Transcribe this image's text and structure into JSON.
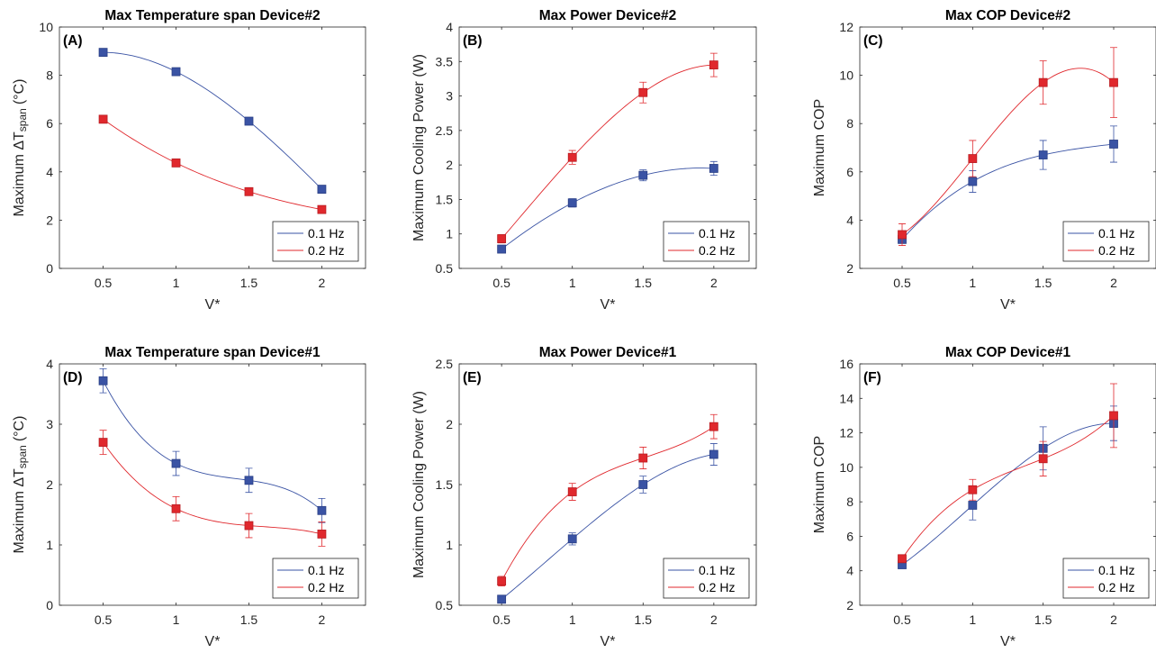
{
  "chart_data": [
    {
      "type": "scatter",
      "panel_label": "(A)",
      "title": "Max Temperature span Device#2",
      "xlabel": "V*",
      "ylabel": "Maximum ΔT",
      "ylabel_sub": "span",
      "ylabel_unit": "(°C)",
      "xlim": [
        0.2,
        2.3
      ],
      "ylim": [
        0,
        10
      ],
      "xticks": [
        "0.5",
        "1",
        "1.5",
        "2"
      ],
      "yticks": [
        "0",
        "2",
        "4",
        "6",
        "8",
        "10"
      ],
      "x": [
        0.5,
        1,
        1.5,
        2
      ],
      "legend_position": "bottom-right",
      "series": [
        {
          "name": "0.1 Hz",
          "color": "#3a53a4",
          "values": [
            8.95,
            8.15,
            6.1,
            3.28
          ],
          "errors": [
            0.15,
            0.15,
            0.15,
            0.15
          ]
        },
        {
          "name": "0.2 Hz",
          "color": "#e0282d",
          "values": [
            6.18,
            4.37,
            3.18,
            2.44
          ],
          "errors": [
            0.12,
            0.12,
            0.12,
            0.12
          ]
        }
      ]
    },
    {
      "type": "scatter",
      "panel_label": "(B)",
      "title": "Max Power Device#2",
      "xlabel": "V*",
      "ylabel": "Maximum Cooling Power (W)",
      "xlim": [
        0.2,
        2.3
      ],
      "ylim": [
        0.5,
        4
      ],
      "xticks": [
        "0.5",
        "1",
        "1.5",
        "2"
      ],
      "yticks": [
        "0.5",
        "1",
        "1.5",
        "2",
        "2.5",
        "3",
        "3.5",
        "4"
      ],
      "x": [
        0.5,
        1,
        1.5,
        2
      ],
      "legend_position": "bottom-right",
      "series": [
        {
          "name": "0.1 Hz",
          "color": "#3a53a4",
          "values": [
            0.78,
            1.45,
            1.85,
            1.95
          ],
          "errors": [
            0.05,
            0.06,
            0.08,
            0.1
          ]
        },
        {
          "name": "0.2 Hz",
          "color": "#e0282d",
          "values": [
            0.93,
            2.11,
            3.05,
            3.45
          ],
          "errors": [
            0.06,
            0.1,
            0.15,
            0.17
          ]
        }
      ]
    },
    {
      "type": "scatter",
      "panel_label": "(C)",
      "title": "Max COP Device#2",
      "xlabel": "V*",
      "ylabel": "Maximum COP",
      "xlim": [
        0.2,
        2.3
      ],
      "ylim": [
        2,
        12
      ],
      "xticks": [
        "0.5",
        "1",
        "1.5",
        "2"
      ],
      "yticks": [
        "2",
        "4",
        "6",
        "8",
        "10",
        "12"
      ],
      "x": [
        0.5,
        1,
        1.5,
        2
      ],
      "legend_position": "bottom-right",
      "series": [
        {
          "name": "0.1 Hz",
          "color": "#3a53a4",
          "values": [
            3.2,
            5.6,
            6.7,
            7.15
          ],
          "errors": [
            0.15,
            0.45,
            0.6,
            0.75
          ]
        },
        {
          "name": "0.2 Hz",
          "color": "#e0282d",
          "values": [
            3.4,
            6.55,
            9.7,
            9.7
          ],
          "errors": [
            0.45,
            0.75,
            0.9,
            1.45
          ]
        }
      ]
    },
    {
      "type": "scatter",
      "panel_label": "(D)",
      "title": "Max Temperature span Device#1",
      "xlabel": "V*",
      "ylabel": "Maximum ΔT",
      "ylabel_sub": "span",
      "ylabel_unit": "(°C)",
      "xlim": [
        0.2,
        2.3
      ],
      "ylim": [
        0,
        4
      ],
      "xticks": [
        "0.5",
        "1",
        "1.5",
        "2"
      ],
      "yticks": [
        "0",
        "1",
        "2",
        "3",
        "4"
      ],
      "x": [
        0.5,
        1,
        1.5,
        2
      ],
      "legend_position": "bottom-right",
      "series": [
        {
          "name": "0.1 Hz",
          "color": "#3a53a4",
          "values": [
            3.72,
            2.35,
            2.07,
            1.57
          ],
          "errors": [
            0.2,
            0.2,
            0.2,
            0.2
          ]
        },
        {
          "name": "0.2 Hz",
          "color": "#e0282d",
          "values": [
            2.7,
            1.6,
            1.32,
            1.18
          ],
          "errors": [
            0.2,
            0.2,
            0.2,
            0.2
          ]
        }
      ]
    },
    {
      "type": "scatter",
      "panel_label": "(E)",
      "title": "Max Power Device#1",
      "xlabel": "V*",
      "ylabel": "Maximum Cooling Power (W)",
      "xlim": [
        0.2,
        2.3
      ],
      "ylim": [
        0.5,
        2.5
      ],
      "xticks": [
        "0.5",
        "1",
        "1.5",
        "2"
      ],
      "yticks": [
        "0.5",
        "1",
        "1.5",
        "2",
        "2.5"
      ],
      "x": [
        0.5,
        1,
        1.5,
        2
      ],
      "legend_position": "bottom-right",
      "series": [
        {
          "name": "0.1 Hz",
          "color": "#3a53a4",
          "values": [
            0.55,
            1.05,
            1.5,
            1.75
          ],
          "errors": [
            0.03,
            0.05,
            0.07,
            0.09
          ]
        },
        {
          "name": "0.2 Hz",
          "color": "#e0282d",
          "values": [
            0.7,
            1.44,
            1.72,
            1.98
          ],
          "errors": [
            0.04,
            0.07,
            0.09,
            0.1
          ]
        }
      ]
    },
    {
      "type": "scatter",
      "panel_label": "(F)",
      "title": "Max COP Device#1",
      "xlabel": "V*",
      "ylabel": "Maximum COP",
      "xlim": [
        0.2,
        2.3
      ],
      "ylim": [
        2,
        16
      ],
      "xticks": [
        "0.5",
        "1",
        "1.5",
        "2"
      ],
      "yticks": [
        "2",
        "4",
        "6",
        "8",
        "10",
        "12",
        "14",
        "16"
      ],
      "x": [
        0.5,
        1,
        1.5,
        2
      ],
      "legend_position": "bottom-right",
      "series": [
        {
          "name": "0.1 Hz",
          "color": "#3a53a4",
          "values": [
            4.35,
            7.8,
            11.1,
            12.55
          ],
          "errors": [
            0.2,
            0.85,
            1.25,
            1.0
          ]
        },
        {
          "name": "0.2 Hz",
          "color": "#e0282d",
          "values": [
            4.7,
            8.7,
            10.5,
            13.0
          ],
          "errors": [
            0.2,
            0.6,
            1.0,
            1.85
          ]
        }
      ]
    }
  ]
}
